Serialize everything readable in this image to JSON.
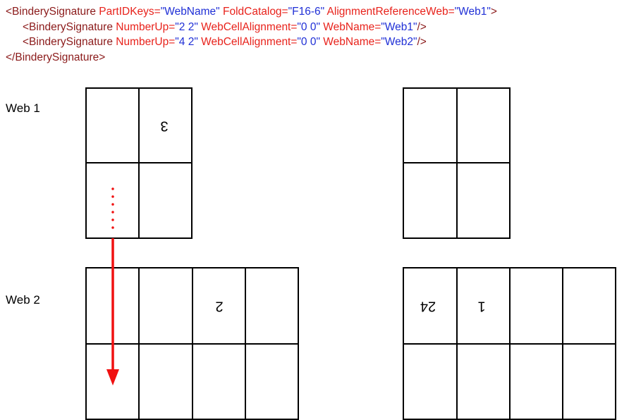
{
  "code": {
    "lines": [
      {
        "tokens": [
          {
            "text": "<BinderySignature",
            "color": "#8b1a1a"
          },
          {
            "text": " PartIDKeys=",
            "color": "#e8221b"
          },
          {
            "text": "\"WebName\"",
            "color": "#1f2fd6"
          },
          {
            "text": " FoldCatalog=",
            "color": "#e8221b"
          },
          {
            "text": "\"F16-6\"",
            "color": "#1f2fd6"
          },
          {
            "text": " AlignmentReferenceWeb=",
            "color": "#e8221b"
          },
          {
            "text": "\"Web1\"",
            "color": "#1f2fd6"
          },
          {
            "text": ">",
            "color": "#8b1a1a"
          }
        ]
      },
      {
        "tokens": [
          {
            "text": "<BinderySignature",
            "color": "#8b1a1a"
          },
          {
            "text": " NumberUp=",
            "color": "#e8221b"
          },
          {
            "text": "\"2 2\"",
            "color": "#1f2fd6"
          },
          {
            "text": " WebCellAlignment=",
            "color": "#e8221b"
          },
          {
            "text": "\"0 0\"",
            "color": "#1f2fd6"
          },
          {
            "text": " WebName=",
            "color": "#e8221b"
          },
          {
            "text": "\"Web1\"",
            "color": "#1f2fd6"
          },
          {
            "text": "/>",
            "color": "#8b1a1a"
          }
        ]
      },
      {
        "tokens": [
          {
            "text": "<BinderySignature",
            "color": "#8b1a1a"
          },
          {
            "text": " NumberUp=",
            "color": "#e8221b"
          },
          {
            "text": "\"4 2\"",
            "color": "#1f2fd6"
          },
          {
            "text": " WebCellAlignment=",
            "color": "#e8221b"
          },
          {
            "text": "\"0 0\"",
            "color": "#1f2fd6"
          },
          {
            "text": " WebName=",
            "color": "#e8221b"
          },
          {
            "text": "\"Web2\"",
            "color": "#1f2fd6"
          },
          {
            "text": "/>",
            "color": "#8b1a1a"
          }
        ]
      },
      {
        "tokens": [
          {
            "text": "</BinderySignature>",
            "color": "#8b1a1a"
          }
        ]
      }
    ]
  },
  "webs": [
    {
      "label": "Web 1",
      "page_numbers": [
        3
      ]
    },
    {
      "label": "Web 2",
      "page_numbers": [
        2,
        24,
        1
      ]
    }
  ]
}
